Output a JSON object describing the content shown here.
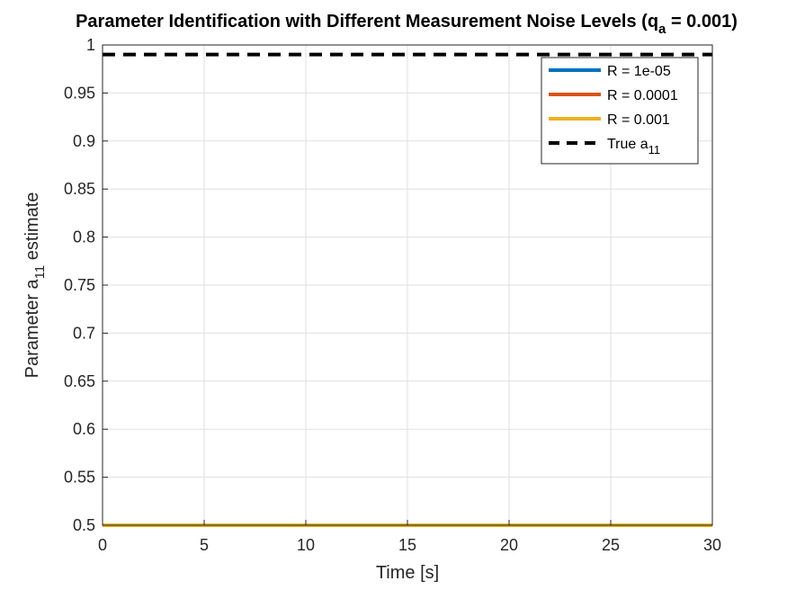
{
  "chart_data": {
    "type": "line",
    "title": {
      "text": "Parameter Identification with Different Measurement Noise Levels (q",
      "sub": "a",
      "suffix": " = 0.001)"
    },
    "xlabel": "Time [s]",
    "ylabel": {
      "text": "Parameter a",
      "sub": "11",
      "suffix": " estimate"
    },
    "xlim": [
      0,
      30
    ],
    "ylim": [
      0.5,
      1
    ],
    "xticks": [
      0,
      5,
      10,
      15,
      20,
      25,
      30
    ],
    "xtick_labels": [
      "0",
      "5",
      "10",
      "15",
      "20",
      "25",
      "30"
    ],
    "yticks": [
      0.5,
      0.55,
      0.6,
      0.65,
      0.7,
      0.75,
      0.8,
      0.85,
      0.9,
      0.95,
      1
    ],
    "ytick_labels": [
      "0.5",
      "0.55",
      "0.6",
      "0.65",
      "0.7",
      "0.75",
      "0.8",
      "0.85",
      "0.9",
      "0.95",
      "1"
    ],
    "grid": true,
    "legend_position": "top-right",
    "series": [
      {
        "name": "R = 1e-05",
        "name_sub": "",
        "color": "#0072BD",
        "style": "solid",
        "x": [
          0,
          30
        ],
        "y": [
          0.5,
          0.5
        ]
      },
      {
        "name": "R = 0.0001",
        "name_sub": "",
        "color": "#D95319",
        "style": "solid",
        "x": [
          0,
          30
        ],
        "y": [
          0.5,
          0.5
        ]
      },
      {
        "name": "R = 0.001",
        "name_sub": "",
        "color": "#EDB120",
        "style": "solid",
        "x": [
          0,
          30
        ],
        "y": [
          0.5,
          0.5
        ]
      },
      {
        "name": "True a",
        "name_sub": "11",
        "color": "#000000",
        "style": "dashed",
        "x": [
          0,
          30
        ],
        "y": [
          0.99,
          0.99
        ]
      }
    ]
  }
}
